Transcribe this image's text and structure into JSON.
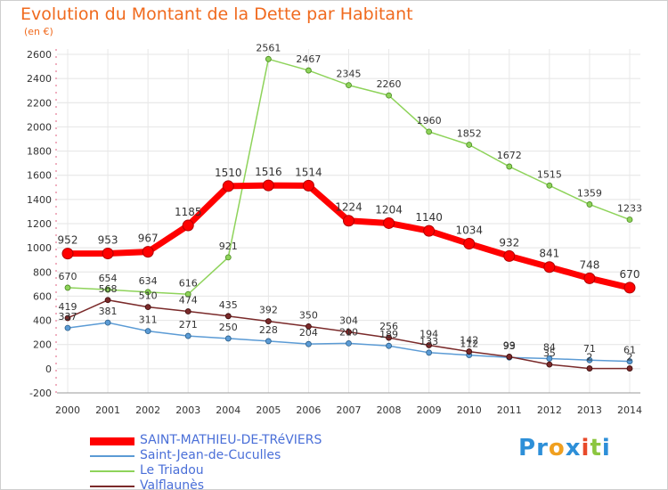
{
  "title": "Evolution du Montant de la Dette par Habitant",
  "subtitle": "(en €)",
  "logo": {
    "text": "Proxiti",
    "letters": [
      "P",
      "r",
      "o",
      "x",
      "i",
      "t",
      "i"
    ],
    "colors": [
      "#2d8fd8",
      "#2d8fd8",
      "#f0a020",
      "#2d8fd8",
      "#e84a2a",
      "#8cc63f",
      "#2d8fd8"
    ]
  },
  "chart_data": {
    "type": "line",
    "title": "Evolution du Montant de la Dette par Habitant",
    "ylabel": "(en €)",
    "xlabel": "",
    "x": [
      "2000",
      "2001",
      "2002",
      "2003",
      "2004",
      "2005",
      "2006",
      "2007",
      "2008",
      "2009",
      "2010",
      "2011",
      "2012",
      "2013",
      "2014"
    ],
    "ylim": [
      -200,
      2600
    ],
    "yticks": [
      -200,
      0,
      200,
      400,
      600,
      800,
      1000,
      1200,
      1400,
      1600,
      1800,
      2000,
      2200,
      2400,
      2600
    ],
    "grid": true,
    "legend": "bottom-left",
    "series": [
      {
        "name": "SAINT-MATHIEU-DE-TRéVIERS",
        "color": "#ff0000",
        "values": [
          952,
          953,
          967,
          1185,
          1510,
          1516,
          1514,
          1224,
          1204,
          1140,
          1034,
          932,
          841,
          748,
          670
        ],
        "labels": [
          "952",
          "953",
          "967",
          "1185",
          "1510",
          "1516",
          "1514",
          "1224",
          "1204",
          "1140",
          "1034",
          "932",
          "841",
          "748",
          "670"
        ]
      },
      {
        "name": "Saint-Jean-de-Cuculles",
        "color": "#5b9bd5",
        "values": [
          337,
          381,
          311,
          271,
          250,
          228,
          204,
          210,
          189,
          133,
          112,
          93,
          84,
          71,
          61
        ],
        "labels": [
          "337",
          "381",
          "311",
          "271",
          "250",
          "228",
          "204",
          "210",
          "189",
          "133",
          "112",
          "93",
          "84",
          "71",
          "61"
        ]
      },
      {
        "name": "Le Triadou",
        "color": "#8ed35a",
        "values": [
          670,
          654,
          634,
          616,
          921,
          2561,
          2467,
          2345,
          2260,
          1960,
          1852,
          1672,
          1515,
          1359,
          1233
        ],
        "labels": [
          "670",
          "654",
          "634",
          "616",
          "921",
          "2561",
          "2467",
          "2345",
          "2260",
          "1960",
          "1852",
          "1672",
          "1515",
          "1359",
          "1233"
        ]
      },
      {
        "name": "Valflaunès",
        "color": "#7a2a2a",
        "values": [
          419,
          568,
          510,
          474,
          435,
          392,
          350,
          304,
          256,
          194,
          142,
          99,
          35,
          2,
          2
        ],
        "labels": [
          "419",
          "568",
          "510",
          "474",
          "435",
          "392",
          "350",
          "304",
          "256",
          "194",
          "142",
          "99",
          "35",
          "2",
          "2"
        ]
      }
    ]
  }
}
